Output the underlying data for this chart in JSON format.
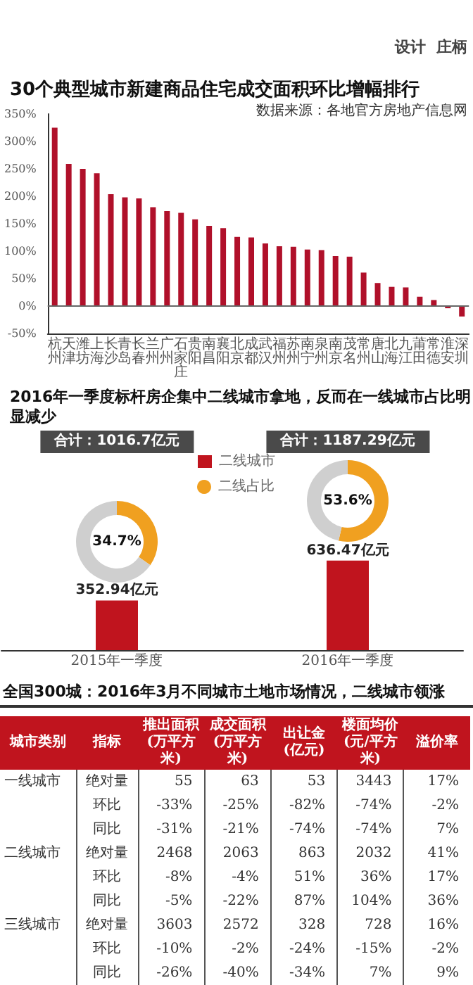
{
  "chart_data": [
    {
      "type": "bar",
      "title": "30个典型城市新建商品住宅成交面积环比增幅排行",
      "annotations": [
        "设计  庄柄",
        "数据来源：各地官方房地产信息网"
      ],
      "categories": [
        "杭州",
        "天津",
        "潍坊",
        "上海",
        "长沙",
        "青岛",
        "长春",
        "兰州",
        "广州",
        "石家庄",
        "贵阳",
        "南昌",
        "襄阳",
        "北京",
        "成都",
        "武汉",
        "福州",
        "苏州",
        "南宁",
        "泉州",
        "南京",
        "茂名",
        "常州",
        "唐山",
        "北海",
        "九江",
        "莆田",
        "常德",
        "淮安",
        "深圳"
      ],
      "values": [
        325,
        259,
        250,
        242,
        204,
        198,
        196,
        180,
        173,
        170,
        158,
        146,
        142,
        126,
        125,
        114,
        109,
        108,
        103,
        102,
        91,
        90,
        61,
        42,
        35,
        34,
        17,
        11,
        -4,
        -19
      ],
      "color": "#b0102a",
      "ylim": [
        -50,
        350
      ],
      "yticks": [
        {
          "value": -50,
          "label": "-50%"
        },
        {
          "value": 0,
          "label": "0%"
        },
        {
          "value": 50,
          "label": "50%"
        },
        {
          "value": 100,
          "label": "100%"
        },
        {
          "value": 150,
          "label": "150%"
        },
        {
          "value": 200,
          "label": "200%"
        },
        {
          "value": 250,
          "label": "250%"
        },
        {
          "value": 300,
          "label": "300%"
        },
        {
          "value": 350,
          "label": "350%"
        }
      ],
      "ref_lines": [
        {
          "axis": "y",
          "value": 0,
          "label": null
        }
      ],
      "grid": false,
      "legend": false
    },
    {
      "type": "bar",
      "title": "2016年一季度标杆房企集中二线城市拿地，反而在一线城市占比明显减少",
      "annotations": [
        "合计：1016.7亿元",
        "合计：1187.29亿元"
      ],
      "categories": [
        "2015年一季度",
        "2016年一季度"
      ],
      "series": [
        {
          "name": "二线城市",
          "color": "#c0141e",
          "values": [
            352.94,
            636.47
          ],
          "value_labels": [
            "352.94亿元",
            "636.47亿元"
          ]
        }
      ],
      "legend": "top",
      "grid": false
    },
    {
      "type": "donut",
      "categories": [
        "二线占比",
        null
      ],
      "values": [
        34.7,
        65.3
      ],
      "colors": [
        "#f0a020",
        "#cfcfcf"
      ],
      "value_labels": [
        "34.7%",
        null
      ],
      "legend": "top right"
    },
    {
      "type": "donut",
      "categories": [
        null,
        null
      ],
      "values": [
        53.6,
        46.4
      ],
      "colors": [
        "#f0a020",
        "#cfcfcf"
      ],
      "value_labels": [
        "53.6%",
        null
      ]
    },
    {
      "type": "other",
      "title": "全国300城：2016年3月不同城市土地市场情况，二线城市领涨",
      "ylabel": "城市类别",
      "y2label": "指标",
      "categories": [
        "推出面积(万平方米)",
        "成交面积(万平方米)",
        "出让金(亿元)",
        "楼面均价(元/平方米)",
        "溢价率"
      ],
      "y_categories": [
        "一线城市",
        null,
        null,
        "二线城市",
        null,
        null,
        "三线城市",
        null,
        null
      ],
      "y2_categories": [
        "绝对量",
        "环比",
        "同比",
        "绝对量",
        "环比",
        "同比",
        "绝对量",
        "环比",
        "同比"
      ],
      "cell_labels": [
        [
          "55",
          "63",
          "53",
          "3443",
          "17%"
        ],
        [
          "-33%",
          "-25%",
          "-82%",
          "-74%",
          "-2%"
        ],
        [
          "-31%",
          "-21%",
          "-74%",
          "-74%",
          "7%"
        ],
        [
          "2468",
          "2063",
          "863",
          "2032",
          "41%"
        ],
        [
          "-8%",
          "-4%",
          "51%",
          "36%",
          "17%"
        ],
        [
          "-5%",
          "-22%",
          "87%",
          "104%",
          "36%"
        ],
        [
          "3603",
          "2572",
          "328",
          "728",
          "16%"
        ],
        [
          "-10%",
          "-2%",
          "-24%",
          "-15%",
          "-2%"
        ],
        [
          "-26%",
          "-40%",
          "-34%",
          "7%",
          "9%"
        ]
      ]
    }
  ]
}
